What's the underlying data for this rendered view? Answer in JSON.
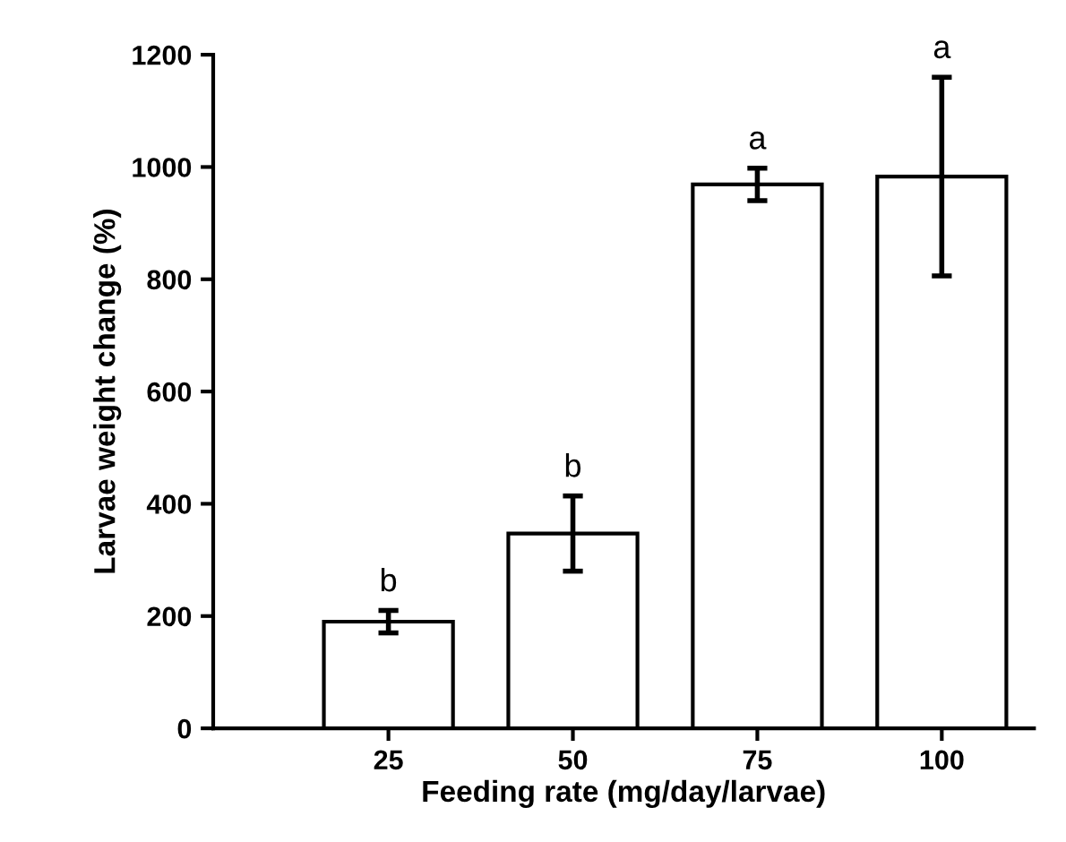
{
  "chart_data": {
    "type": "bar",
    "xlabel": "Feeding rate (mg/day/larvae)",
    "ylabel": "Larvae weight change (%)",
    "categories": [
      "25",
      "50",
      "75",
      "100"
    ],
    "values": [
      190,
      347,
      969,
      983
    ],
    "errors": [
      20,
      67,
      29,
      177
    ],
    "color": "#ffffff",
    "ylim": [
      0,
      1200
    ],
    "yticks": [
      0,
      200,
      400,
      600,
      800,
      1000,
      1200
    ],
    "annotations": [
      {
        "text": "b",
        "x": "25",
        "y": 210
      },
      {
        "text": "b",
        "x": "50",
        "y": 414
      },
      {
        "text": "a",
        "x": "75",
        "y": 998
      },
      {
        "text": "a",
        "x": "100",
        "y": 1160
      }
    ]
  }
}
